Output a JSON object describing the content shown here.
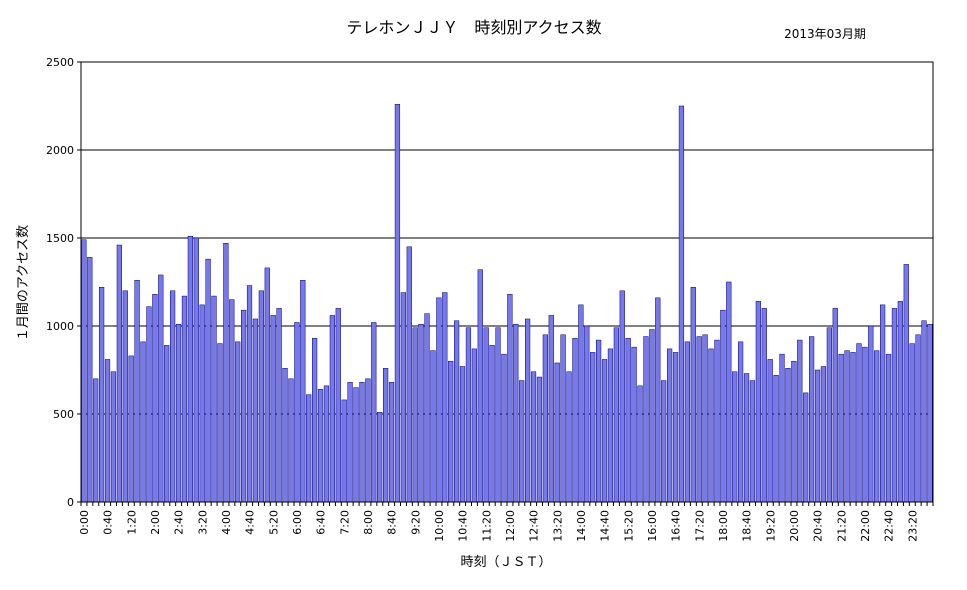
{
  "chart_data": {
    "type": "bar",
    "title": "テレホンＪＪＹ　時刻別アクセス数",
    "period": "2013年03月期",
    "xlabel": "時刻（ＪＳＴ）",
    "ylabel": "１月間のアクセス数",
    "ylim": [
      0,
      2500
    ],
    "yticks": [
      0,
      500,
      1000,
      1500,
      2000,
      2500
    ],
    "grid": "horizontal",
    "bar_color": "#7777ee",
    "bar_edge_color": "#000066",
    "x_interval_minutes": 10,
    "xtick_labels": [
      "0:00",
      "0:40",
      "1:20",
      "2:00",
      "2:40",
      "3:20",
      "4:00",
      "4:40",
      "5:20",
      "6:00",
      "6:40",
      "7:20",
      "8:00",
      "8:40",
      "9:20",
      "10:00",
      "10:40",
      "11:20",
      "12:00",
      "12:40",
      "13:20",
      "14:00",
      "14:40",
      "15:20",
      "16:00",
      "16:40",
      "17:20",
      "18:00",
      "18:40",
      "19:20",
      "20:00",
      "20:40",
      "21:20",
      "22:00",
      "22:40",
      "23:20"
    ],
    "values": [
      1490,
      1390,
      700,
      1220,
      810,
      740,
      1460,
      1200,
      830,
      1260,
      910,
      1110,
      1180,
      1290,
      890,
      1200,
      1010,
      1170,
      1510,
      1500,
      1120,
      1380,
      1170,
      900,
      1470,
      1150,
      910,
      1090,
      1230,
      1040,
      1200,
      1330,
      1060,
      1100,
      760,
      700,
      1020,
      1260,
      610,
      930,
      640,
      660,
      1060,
      1100,
      580,
      680,
      650,
      680,
      700,
      1020,
      510,
      760,
      680,
      2260,
      1190,
      1450,
      990,
      1010,
      1070,
      860,
      1160,
      1190,
      800,
      1030,
      770,
      990,
      870,
      1320,
      990,
      890,
      990,
      840,
      1180,
      1010,
      690,
      1040,
      740,
      710,
      950,
      1060,
      790,
      950,
      740,
      930,
      1120,
      1000,
      850,
      920,
      810,
      870,
      990,
      1200,
      930,
      880,
      660,
      940,
      980,
      1160,
      690,
      870,
      850,
      2250,
      910,
      1220,
      940,
      950,
      870,
      920,
      1090,
      1250,
      740,
      910,
      730,
      690,
      1140,
      1100,
      810,
      720,
      840,
      760,
      800,
      920,
      620,
      940,
      750,
      770,
      990,
      1100,
      840,
      860,
      850,
      900,
      880,
      1000,
      860,
      1120,
      840,
      1100,
      1140,
      1350,
      900,
      950,
      1030,
      1010
    ]
  }
}
